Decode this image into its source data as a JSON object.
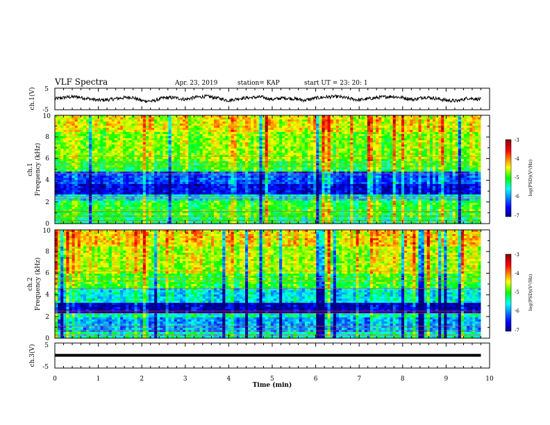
{
  "header": {
    "title": "VLF Spectra",
    "date": "Apr. 23, 2019",
    "station": "station= KAP",
    "start": "start  UT =   23: 20: 1"
  },
  "colors": {
    "background": "#ffffff",
    "axis": "#000000",
    "trace": "#000000",
    "colormap": [
      "#000080",
      "#0000ff",
      "#00ffff",
      "#00ff00",
      "#ffff00",
      "#ff0000",
      "#800000"
    ]
  },
  "chart_data": [
    {
      "type": "line",
      "panel": "ch1-waveform",
      "ylabel": "ch.1(V)",
      "ylim": [
        -5,
        5
      ],
      "yticks": [
        "5",
        "-5"
      ],
      "xlim": [
        0,
        10
      ],
      "series": [
        {
          "x": [
            0,
            0.25,
            0.5,
            0.75,
            1.0,
            1.25,
            1.5,
            1.75,
            2.0,
            2.25,
            2.5,
            2.75,
            3.0,
            3.25,
            3.5,
            3.75,
            4.0,
            4.25,
            4.5,
            4.75,
            5.0,
            5.25,
            5.5,
            5.75,
            6.0,
            6.25,
            6.5,
            6.75,
            7.0,
            7.25,
            7.5,
            7.75,
            8.0,
            8.25,
            8.5,
            8.75,
            9.0,
            9.25,
            9.5,
            9.8
          ],
          "values": [
            0.0,
            0.8,
            1.0,
            0.2,
            -0.6,
            -0.3,
            0.4,
            0.9,
            -0.8,
            -1.0,
            0.5,
            0.6,
            -0.2,
            0.8,
            1.2,
            0.4,
            -0.7,
            0.3,
            0.6,
            0.9,
            -0.2,
            0.5,
            0.1,
            -0.6,
            0.4,
            0.9,
            1.1,
            0.3,
            -0.5,
            0.2,
            0.8,
            1.2,
            0.6,
            -0.3,
            0.9,
            0.3,
            -0.6,
            -0.9,
            0.4,
            -0.2
          ]
        }
      ]
    },
    {
      "type": "heatmap",
      "panel": "ch1-spectrogram",
      "ylabel": "ch.1",
      "ylabel2": "Frequency  (kHz)",
      "ylim": [
        0,
        10
      ],
      "yticks": [
        "0",
        "2",
        "4",
        "6",
        "8",
        "10"
      ],
      "xlim": [
        0,
        10
      ],
      "colorbar": {
        "label": "log(PSD)(V²/Hz)",
        "range": [
          -7,
          -3
        ],
        "ticks": [
          "-3",
          "-4",
          "-5",
          "-6",
          "-7"
        ]
      },
      "bands": [
        {
          "from_khz": 0.0,
          "to_khz": 0.6,
          "level": -5.2
        },
        {
          "from_khz": 0.6,
          "to_khz": 2.2,
          "level": -5.0
        },
        {
          "from_khz": 2.2,
          "to_khz": 2.6,
          "level": -5.6
        },
        {
          "from_khz": 2.6,
          "to_khz": 3.7,
          "level": -6.6
        },
        {
          "from_khz": 3.7,
          "to_khz": 4.9,
          "level": -6.2
        },
        {
          "from_khz": 4.9,
          "to_khz": 5.8,
          "level": -5.0
        },
        {
          "from_khz": 5.8,
          "to_khz": 8.5,
          "level": -4.7
        },
        {
          "from_khz": 8.5,
          "to_khz": 10.0,
          "level": -4.4
        }
      ]
    },
    {
      "type": "heatmap",
      "panel": "ch2-spectrogram",
      "ylabel": "ch.2",
      "ylabel2": "Frequency  (kHz)",
      "ylim": [
        0,
        10
      ],
      "yticks": [
        "0",
        "2",
        "4",
        "6",
        "8",
        "10"
      ],
      "xlim": [
        0,
        10
      ],
      "colorbar": {
        "label": "log(PSD)(V²/Hz)",
        "range": [
          -7,
          -3
        ],
        "ticks": [
          "-3",
          "-4",
          "-5",
          "-6",
          "-7"
        ]
      },
      "bands": [
        {
          "from_khz": 0.0,
          "to_khz": 0.6,
          "level": -5.4
        },
        {
          "from_khz": 0.6,
          "to_khz": 1.9,
          "level": -5.9
        },
        {
          "from_khz": 1.9,
          "to_khz": 2.3,
          "level": -5.4
        },
        {
          "from_khz": 2.3,
          "to_khz": 3.3,
          "level": -6.8
        },
        {
          "from_khz": 3.3,
          "to_khz": 4.6,
          "level": -5.6
        },
        {
          "from_khz": 4.6,
          "to_khz": 6.0,
          "level": -5.0
        },
        {
          "from_khz": 6.0,
          "to_khz": 8.5,
          "level": -4.6
        },
        {
          "from_khz": 8.5,
          "to_khz": 10.0,
          "level": -4.3
        }
      ]
    },
    {
      "type": "line",
      "panel": "ch3-waveform",
      "ylabel": "ch.3(V)",
      "ylim": [
        -5,
        5
      ],
      "yticks": [
        "5",
        "-5"
      ],
      "xlim": [
        0,
        10
      ],
      "xlabel": "Time  (min)",
      "xticks": [
        "0",
        "1",
        "2",
        "3",
        "4",
        "5",
        "6",
        "7",
        "8",
        "9",
        "10"
      ],
      "series": [
        {
          "x": [
            0,
            9.8
          ],
          "values": [
            0.1,
            0.1
          ]
        }
      ]
    }
  ]
}
